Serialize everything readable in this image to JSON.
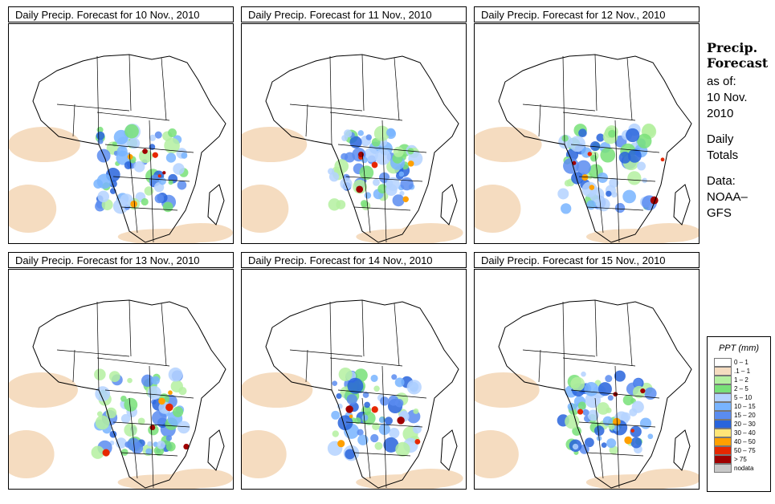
{
  "panels": [
    {
      "title": "Daily Precip. Forecast for  10 Nov., 2010"
    },
    {
      "title": "Daily Precip. Forecast for  11 Nov., 2010"
    },
    {
      "title": "Daily Precip. Forecast for  12 Nov., 2010"
    },
    {
      "title": "Daily Precip. Forecast for  13 Nov., 2010"
    },
    {
      "title": "Daily Precip. Forecast for  14 Nov., 2010"
    },
    {
      "title": "Daily Precip. Forecast for  15 Nov., 2010"
    }
  ],
  "sidebar": {
    "heading_line1": "Precip.",
    "heading_line2": "Forecast",
    "asof_label": "as of:",
    "asof_date_line1": "10 Nov.",
    "asof_date_line2": "2010",
    "totals_line1": "Daily",
    "totals_line2": "Totals",
    "data_line1": "Data:",
    "data_line2": "NOAA–",
    "data_line3": "GFS"
  },
  "legend": {
    "title": "PPT (mm)",
    "items": [
      {
        "label": "0 – 1",
        "color": "#ffffff"
      },
      {
        "label": ".1 – 1",
        "color": "#f5dcc0"
      },
      {
        "label": "1 – 2",
        "color": "#b4f0a0"
      },
      {
        "label": "2 – 5",
        "color": "#78e178"
      },
      {
        "label": "5 – 10",
        "color": "#b4d2ff"
      },
      {
        "label": "10 – 15",
        "color": "#78b4ff"
      },
      {
        "label": "15 – 20",
        "color": "#5a8cf0"
      },
      {
        "label": "20 – 30",
        "color": "#2864dc"
      },
      {
        "label": "30 – 40",
        "color": "#ffe678"
      },
      {
        "label": "40 – 50",
        "color": "#ffa000"
      },
      {
        "label": "50 – 75",
        "color": "#e62800"
      },
      {
        "label": "> 75",
        "color": "#a00000"
      },
      {
        "label": "nodata",
        "color": "#c8c8c8"
      }
    ]
  }
}
